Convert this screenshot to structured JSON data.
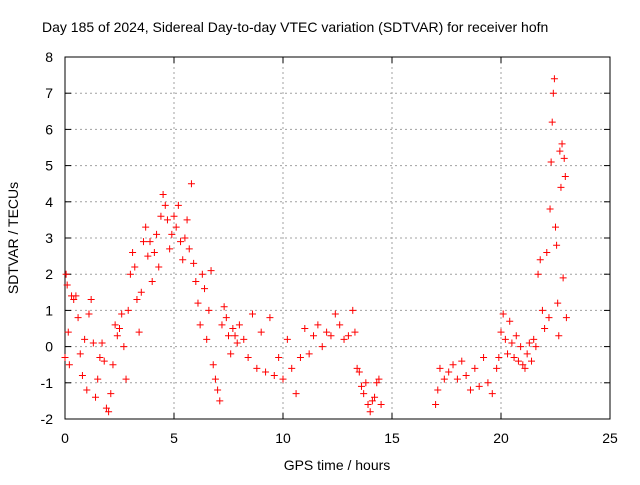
{
  "chart_data": {
    "type": "scatter",
    "title": "Day 185 of 2024, Sidereal Day-to-day VTEC variation (SDTVAR) for receiver hofn",
    "xlabel": "GPS time / hours",
    "ylabel": "SDTVAR / TECUs",
    "xlim": [
      0,
      25
    ],
    "ylim": [
      -2,
      8
    ],
    "x_ticks": [
      0,
      5,
      10,
      15,
      20,
      25
    ],
    "y_ticks": [
      -2,
      -1,
      0,
      1,
      2,
      3,
      4,
      5,
      6,
      7,
      8
    ],
    "x_tick_labels": [
      "0",
      "5",
      "10",
      "15",
      "20",
      "25"
    ],
    "y_tick_labels": [
      "-2",
      "-1",
      "0",
      "1",
      "2",
      "3",
      "4",
      "5",
      "6",
      "7",
      "8"
    ],
    "grid": true,
    "marker": "+",
    "series": [
      {
        "name": "SDTVAR",
        "color": "#ff0000",
        "points": [
          [
            0.0,
            -0.3
          ],
          [
            0.05,
            2.0
          ],
          [
            0.1,
            1.7
          ],
          [
            0.15,
            0.4
          ],
          [
            0.2,
            -0.5
          ],
          [
            0.3,
            1.4
          ],
          [
            0.4,
            1.3
          ],
          [
            0.5,
            1.4
          ],
          [
            0.6,
            0.8
          ],
          [
            0.7,
            -0.2
          ],
          [
            0.8,
            -0.8
          ],
          [
            0.9,
            0.2
          ],
          [
            1.0,
            -1.2
          ],
          [
            1.1,
            0.9
          ],
          [
            1.2,
            1.3
          ],
          [
            1.3,
            0.1
          ],
          [
            1.4,
            -1.4
          ],
          [
            1.5,
            -0.9
          ],
          [
            1.6,
            -0.3
          ],
          [
            1.7,
            0.1
          ],
          [
            1.8,
            -0.4
          ],
          [
            1.9,
            -1.7
          ],
          [
            2.0,
            -1.8
          ],
          [
            2.1,
            -1.3
          ],
          [
            2.2,
            -0.5
          ],
          [
            2.3,
            0.6
          ],
          [
            2.4,
            0.3
          ],
          [
            2.5,
            0.5
          ],
          [
            2.6,
            0.9
          ],
          [
            2.7,
            0.0
          ],
          [
            2.8,
            -0.9
          ],
          [
            2.9,
            1.0
          ],
          [
            3.0,
            2.0
          ],
          [
            3.1,
            2.6
          ],
          [
            3.2,
            2.2
          ],
          [
            3.3,
            1.3
          ],
          [
            3.4,
            0.4
          ],
          [
            3.5,
            1.5
          ],
          [
            3.6,
            2.9
          ],
          [
            3.7,
            3.3
          ],
          [
            3.8,
            2.5
          ],
          [
            3.9,
            2.9
          ],
          [
            4.0,
            1.8
          ],
          [
            4.1,
            2.6
          ],
          [
            4.2,
            3.1
          ],
          [
            4.3,
            2.2
          ],
          [
            4.4,
            3.6
          ],
          [
            4.5,
            4.2
          ],
          [
            4.6,
            3.9
          ],
          [
            4.7,
            3.5
          ],
          [
            4.8,
            2.7
          ],
          [
            4.9,
            3.1
          ],
          [
            5.0,
            3.6
          ],
          [
            5.1,
            3.3
          ],
          [
            5.2,
            3.9
          ],
          [
            5.3,
            2.9
          ],
          [
            5.4,
            2.4
          ],
          [
            5.5,
            3.0
          ],
          [
            5.6,
            3.5
          ],
          [
            5.7,
            2.7
          ],
          [
            5.8,
            4.5
          ],
          [
            5.9,
            2.3
          ],
          [
            6.0,
            1.8
          ],
          [
            6.1,
            1.2
          ],
          [
            6.2,
            0.6
          ],
          [
            6.3,
            2.0
          ],
          [
            6.4,
            1.6
          ],
          [
            6.5,
            0.2
          ],
          [
            6.6,
            1.0
          ],
          [
            6.7,
            2.1
          ],
          [
            6.8,
            -0.5
          ],
          [
            6.9,
            -0.9
          ],
          [
            7.0,
            -1.2
          ],
          [
            7.1,
            -1.5
          ],
          [
            7.2,
            0.6
          ],
          [
            7.3,
            1.1
          ],
          [
            7.4,
            0.8
          ],
          [
            7.5,
            0.3
          ],
          [
            7.6,
            -0.2
          ],
          [
            7.7,
            0.5
          ],
          [
            7.8,
            0.3
          ],
          [
            7.9,
            0.1
          ],
          [
            8.0,
            0.6
          ],
          [
            8.2,
            0.2
          ],
          [
            8.4,
            -0.3
          ],
          [
            8.6,
            0.9
          ],
          [
            8.8,
            -0.6
          ],
          [
            9.0,
            0.4
          ],
          [
            9.2,
            -0.7
          ],
          [
            9.4,
            0.8
          ],
          [
            9.6,
            -0.8
          ],
          [
            9.8,
            -0.3
          ],
          [
            10.0,
            -0.9
          ],
          [
            10.2,
            0.2
          ],
          [
            10.4,
            -0.6
          ],
          [
            10.6,
            -1.3
          ],
          [
            10.8,
            -0.3
          ],
          [
            11.0,
            0.5
          ],
          [
            11.2,
            -0.2
          ],
          [
            11.4,
            0.3
          ],
          [
            11.6,
            0.6
          ],
          [
            11.8,
            0.0
          ],
          [
            12.0,
            0.4
          ],
          [
            12.2,
            0.3
          ],
          [
            12.4,
            0.9
          ],
          [
            12.6,
            0.6
          ],
          [
            12.8,
            0.2
          ],
          [
            13.0,
            0.3
          ],
          [
            13.2,
            1.0
          ],
          [
            13.3,
            0.4
          ],
          [
            13.4,
            -0.6
          ],
          [
            13.5,
            -0.7
          ],
          [
            13.6,
            -1.1
          ],
          [
            13.7,
            -1.3
          ],
          [
            13.8,
            -1.0
          ],
          [
            13.9,
            -1.6
          ],
          [
            14.0,
            -1.8
          ],
          [
            14.1,
            -1.5
          ],
          [
            14.2,
            -1.4
          ],
          [
            14.3,
            -1.0
          ],
          [
            14.4,
            -0.9
          ],
          [
            14.5,
            -1.6
          ],
          [
            17.0,
            -1.6
          ],
          [
            17.1,
            -1.2
          ],
          [
            17.2,
            -0.6
          ],
          [
            17.4,
            -0.9
          ],
          [
            17.6,
            -0.7
          ],
          [
            17.8,
            -0.5
          ],
          [
            18.0,
            -0.9
          ],
          [
            18.2,
            -0.4
          ],
          [
            18.4,
            -0.8
          ],
          [
            18.6,
            -1.2
          ],
          [
            18.8,
            -0.6
          ],
          [
            19.0,
            -1.1
          ],
          [
            19.2,
            -0.3
          ],
          [
            19.4,
            -1.0
          ],
          [
            19.6,
            -1.3
          ],
          [
            19.8,
            -0.6
          ],
          [
            19.9,
            -0.3
          ],
          [
            20.0,
            0.4
          ],
          [
            20.1,
            0.9
          ],
          [
            20.2,
            0.2
          ],
          [
            20.3,
            -0.2
          ],
          [
            20.4,
            0.7
          ],
          [
            20.5,
            0.1
          ],
          [
            20.6,
            -0.3
          ],
          [
            20.7,
            0.3
          ],
          [
            20.8,
            -0.4
          ],
          [
            20.9,
            0.0
          ],
          [
            21.0,
            -0.5
          ],
          [
            21.1,
            -0.6
          ],
          [
            21.2,
            -0.2
          ],
          [
            21.3,
            0.1
          ],
          [
            21.4,
            -0.4
          ],
          [
            21.5,
            0.2
          ],
          [
            21.6,
            0.0
          ],
          [
            21.7,
            2.0
          ],
          [
            21.8,
            2.4
          ],
          [
            21.9,
            1.0
          ],
          [
            22.0,
            0.5
          ],
          [
            22.1,
            2.6
          ],
          [
            22.2,
            0.8
          ],
          [
            22.25,
            3.8
          ],
          [
            22.3,
            5.1
          ],
          [
            22.35,
            6.2
          ],
          [
            22.4,
            7.0
          ],
          [
            22.45,
            7.4
          ],
          [
            22.5,
            3.3
          ],
          [
            22.55,
            2.8
          ],
          [
            22.6,
            1.2
          ],
          [
            22.65,
            0.3
          ],
          [
            22.7,
            5.4
          ],
          [
            22.75,
            4.4
          ],
          [
            22.8,
            5.6
          ],
          [
            22.85,
            1.9
          ],
          [
            22.9,
            5.2
          ],
          [
            22.95,
            4.7
          ],
          [
            23.0,
            0.8
          ]
        ]
      }
    ]
  }
}
